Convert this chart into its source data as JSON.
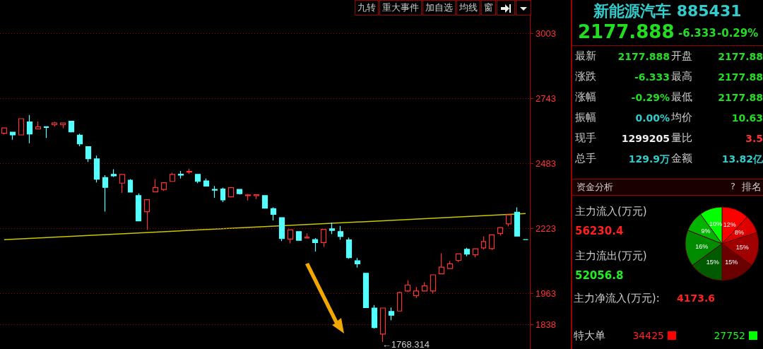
{
  "chart_data": [
    {
      "type": "candlestick",
      "categories": [
        null,
        null,
        null,
        null,
        null,
        null,
        null,
        null,
        null,
        null,
        null,
        null,
        null,
        null,
        null,
        null,
        null,
        null,
        null,
        null,
        null,
        null,
        null,
        null,
        null,
        null,
        null,
        null,
        null,
        null,
        null,
        null,
        null,
        null,
        null,
        null,
        null,
        null,
        null,
        null,
        null,
        null,
        null,
        null,
        null,
        null,
        null,
        null,
        null,
        null,
        null,
        null,
        null,
        null,
        null,
        null,
        null,
        null,
        null,
        null,
        null,
        null,
        null
      ],
      "ohlc": [
        [
          2604,
          2625,
          2599,
          2625
        ],
        [
          2608,
          2608,
          2578,
          2597
        ],
        [
          2597,
          2662,
          2597,
          2662
        ],
        [
          2649,
          2677,
          2564,
          2601
        ],
        [
          2621,
          2651,
          2621,
          2629
        ],
        [
          2630,
          2630,
          2585,
          2627
        ],
        [
          2638,
          2649,
          2630,
          2645
        ],
        [
          2638,
          2645,
          2624,
          2645
        ],
        [
          2652,
          2653,
          2607,
          2609
        ],
        [
          2596,
          2602,
          2552,
          2561
        ],
        [
          2550,
          2550,
          2489,
          2502
        ],
        [
          2501,
          2514,
          2407,
          2420
        ],
        [
          2426,
          2436,
          2290,
          2387
        ],
        [
          2439,
          2460,
          2429,
          2433
        ],
        [
          2404,
          2439,
          2365,
          2439
        ],
        [
          2416,
          2420,
          2368,
          2368
        ],
        [
          2354,
          2363,
          2253,
          2253
        ],
        [
          2290,
          2338,
          2217,
          2338
        ],
        [
          2369,
          2420,
          2369,
          2386
        ],
        [
          2379,
          2406,
          2373,
          2406
        ],
        [
          2411,
          2446,
          2411,
          2439
        ],
        [
          2440,
          2453,
          2422,
          2436
        ],
        [
          2448,
          2461,
          2441,
          2451
        ],
        [
          2439,
          2439,
          2404,
          2411
        ],
        [
          2413,
          2422,
          2392,
          2392
        ],
        [
          2379,
          2393,
          2345,
          2376
        ],
        [
          2380,
          2386,
          2328,
          2337
        ],
        [
          2349,
          2386,
          2349,
          2386
        ],
        [
          2379,
          2379,
          2359,
          2362
        ],
        [
          2354,
          2361,
          2335,
          2357
        ],
        [
          2354,
          2358,
          2340,
          2358
        ],
        [
          2354,
          2354,
          2304,
          2304
        ],
        [
          2302,
          2307,
          2255,
          2279
        ],
        [
          2266,
          2266,
          2172,
          2182
        ],
        [
          2180,
          2217,
          2163,
          2217
        ],
        [
          2210,
          2210,
          2175,
          2175
        ],
        [
          2184,
          2203,
          2182,
          2188
        ],
        [
          2178,
          2184,
          2130,
          2166
        ],
        [
          2166,
          2219,
          2149,
          2219
        ],
        [
          2221,
          2246,
          2200,
          2215
        ],
        [
          2210,
          2233,
          2178,
          2191
        ],
        [
          2177,
          2186,
          2101,
          2106
        ],
        [
          2093,
          2104,
          2066,
          2081
        ],
        [
          2043,
          2043,
          1906,
          1906
        ],
        [
          1904,
          1916,
          1822,
          1826
        ],
        [
          1800,
          1904,
          1768.314,
          1904
        ],
        [
          1890,
          1906,
          1855,
          1875
        ],
        [
          1892,
          1970,
          1892,
          1966
        ],
        [
          1972,
          2015,
          1968,
          1996
        ],
        [
          1954,
          1988,
          1944,
          1972
        ],
        [
          1972,
          2007,
          1972,
          1993
        ],
        [
          1972,
          2037,
          1963,
          2037
        ],
        [
          2041,
          2123,
          2041,
          2068
        ],
        [
          2062,
          2092,
          2062,
          2081
        ],
        [
          2095,
          2121,
          2088,
          2121
        ],
        [
          2139,
          2145,
          2111,
          2120
        ],
        [
          2117,
          2141,
          2107,
          2141
        ],
        [
          2145,
          2191,
          2139,
          2170
        ],
        [
          2142,
          2197,
          2137,
          2197
        ],
        [
          2203,
          2226,
          2194,
          2226
        ],
        [
          2241,
          2277,
          2231,
          2277
        ],
        [
          2288,
          2307,
          2192,
          2192
        ],
        [
          2178,
          2178,
          2178,
          2178
        ]
      ],
      "series": [
        {
          "type": "line",
          "color": "#c8c800",
          "line_style": "solid",
          "values": [
            2178,
            null,
            null,
            null,
            null,
            null,
            null,
            null,
            null,
            null,
            null,
            null,
            null,
            null,
            null,
            null,
            null,
            null,
            null,
            null,
            null,
            null,
            null,
            null,
            null,
            null,
            null,
            null,
            null,
            null,
            null,
            null,
            null,
            null,
            null,
            null,
            null,
            null,
            null,
            null,
            null,
            null,
            null,
            null,
            null,
            null,
            null,
            null,
            null,
            null,
            null,
            null,
            null,
            null,
            null,
            null,
            null,
            null,
            null,
            null,
            null,
            null,
            2282
          ]
        }
      ],
      "ylim": [
        1740,
        3075
      ],
      "yticks": [
        1838,
        1963,
        2223,
        2483,
        2743,
        3003
      ],
      "grid": "y",
      "tick_labels": "y",
      "marker": "none",
      "annotations": [
        "九转",
        "重大事件",
        "加自选",
        "均线",
        "窗",
        "←1768.314"
      ]
    },
    {
      "type": "other",
      "title": "新能源汽车 885431",
      "annotations": [
        "2177.888",
        "-6.333",
        "-0.29%",
        "最新",
        "2177.888",
        "开盘",
        "2177.88",
        "涨跌",
        "-6.333",
        "最高",
        "2177.88",
        "涨幅",
        "-0.29%",
        "最低",
        "2177.88",
        "振幅",
        "0.00%",
        "均价",
        "10.63",
        "现手",
        "1299205",
        "量比",
        "3.5",
        "总手",
        "129.9万",
        "金额",
        "13.82亿",
        "资金分析",
        "?",
        "排名",
        "主力流入(万元)",
        "56230.4",
        "主力流出(万元)",
        "52056.8",
        "主力净流入(万元):",
        "4173.6",
        "特大单",
        "34425",
        "27752"
      ]
    },
    {
      "type": "pie",
      "categories": [
        null,
        null,
        null,
        null,
        null,
        null,
        null,
        null
      ],
      "values": [
        12,
        8,
        15,
        15,
        15,
        16,
        9,
        10
      ],
      "colors": [
        "#ff0000",
        "#dd0000",
        "#a00000",
        "#6a0000",
        "#005a00",
        "#008c00",
        "#00b400",
        "#00ff00"
      ],
      "value_labels": [
        "12%",
        "8%",
        "15%",
        "15%",
        "15%",
        "16%",
        "9%",
        "10%"
      ]
    }
  ]
}
